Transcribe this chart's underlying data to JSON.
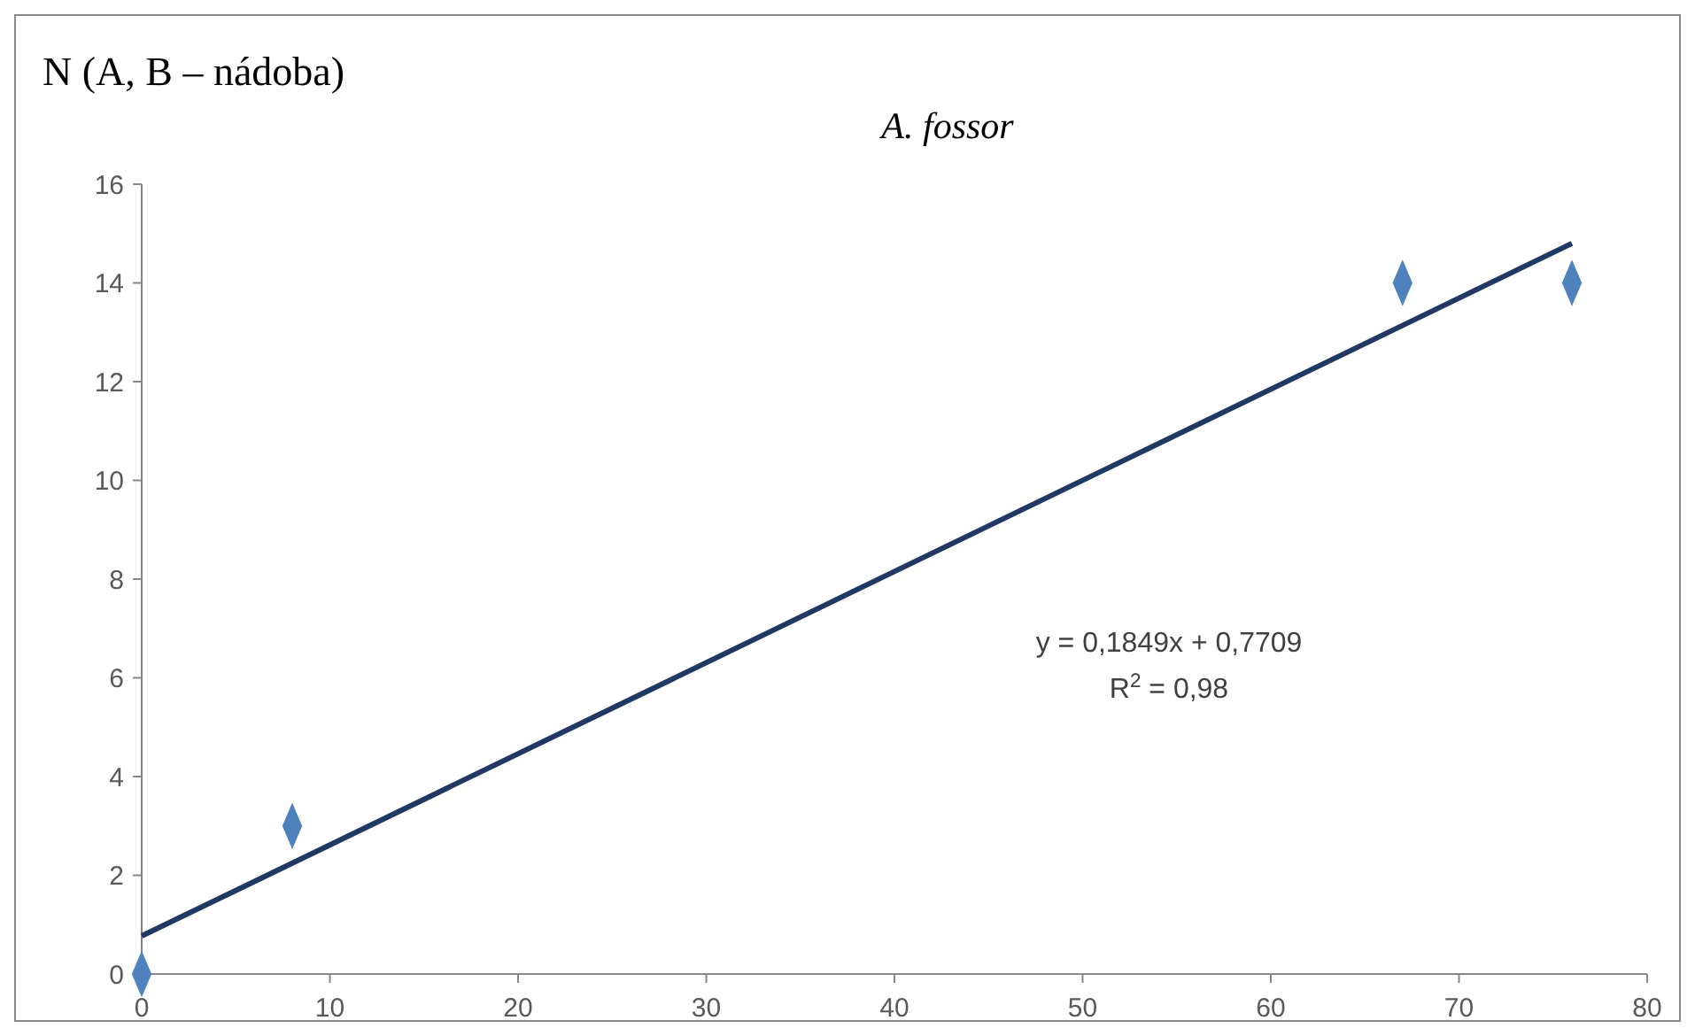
{
  "chart_data": {
    "type": "scatter",
    "title": "A. fossor",
    "ylabel": "N (A, B – nádoba)",
    "annotations": [
      "y = 0,1849x + 0,7709",
      "R$^{2}$ = 0,98"
    ],
    "series": [
      {
        "color": "#4f81bd",
        "x": [
          0,
          8,
          67,
          76
        ],
        "values": [
          0,
          3,
          14,
          14
        ],
        "marker": "diamond"
      },
      {
        "type": "line",
        "color": "#1f3864",
        "x": [
          0,
          76
        ],
        "values": [
          0.77,
          14.8
        ],
        "marker": "none",
        "line_style": "solid"
      }
    ],
    "xlim": [
      0,
      80
    ],
    "xticks": [
      0,
      10,
      20,
      30,
      40,
      50,
      60,
      70,
      80
    ],
    "ylim": [
      0,
      16
    ],
    "yticks": [
      0,
      2,
      4,
      6,
      8,
      10,
      12,
      14,
      16
    ],
    "grid": false
  }
}
